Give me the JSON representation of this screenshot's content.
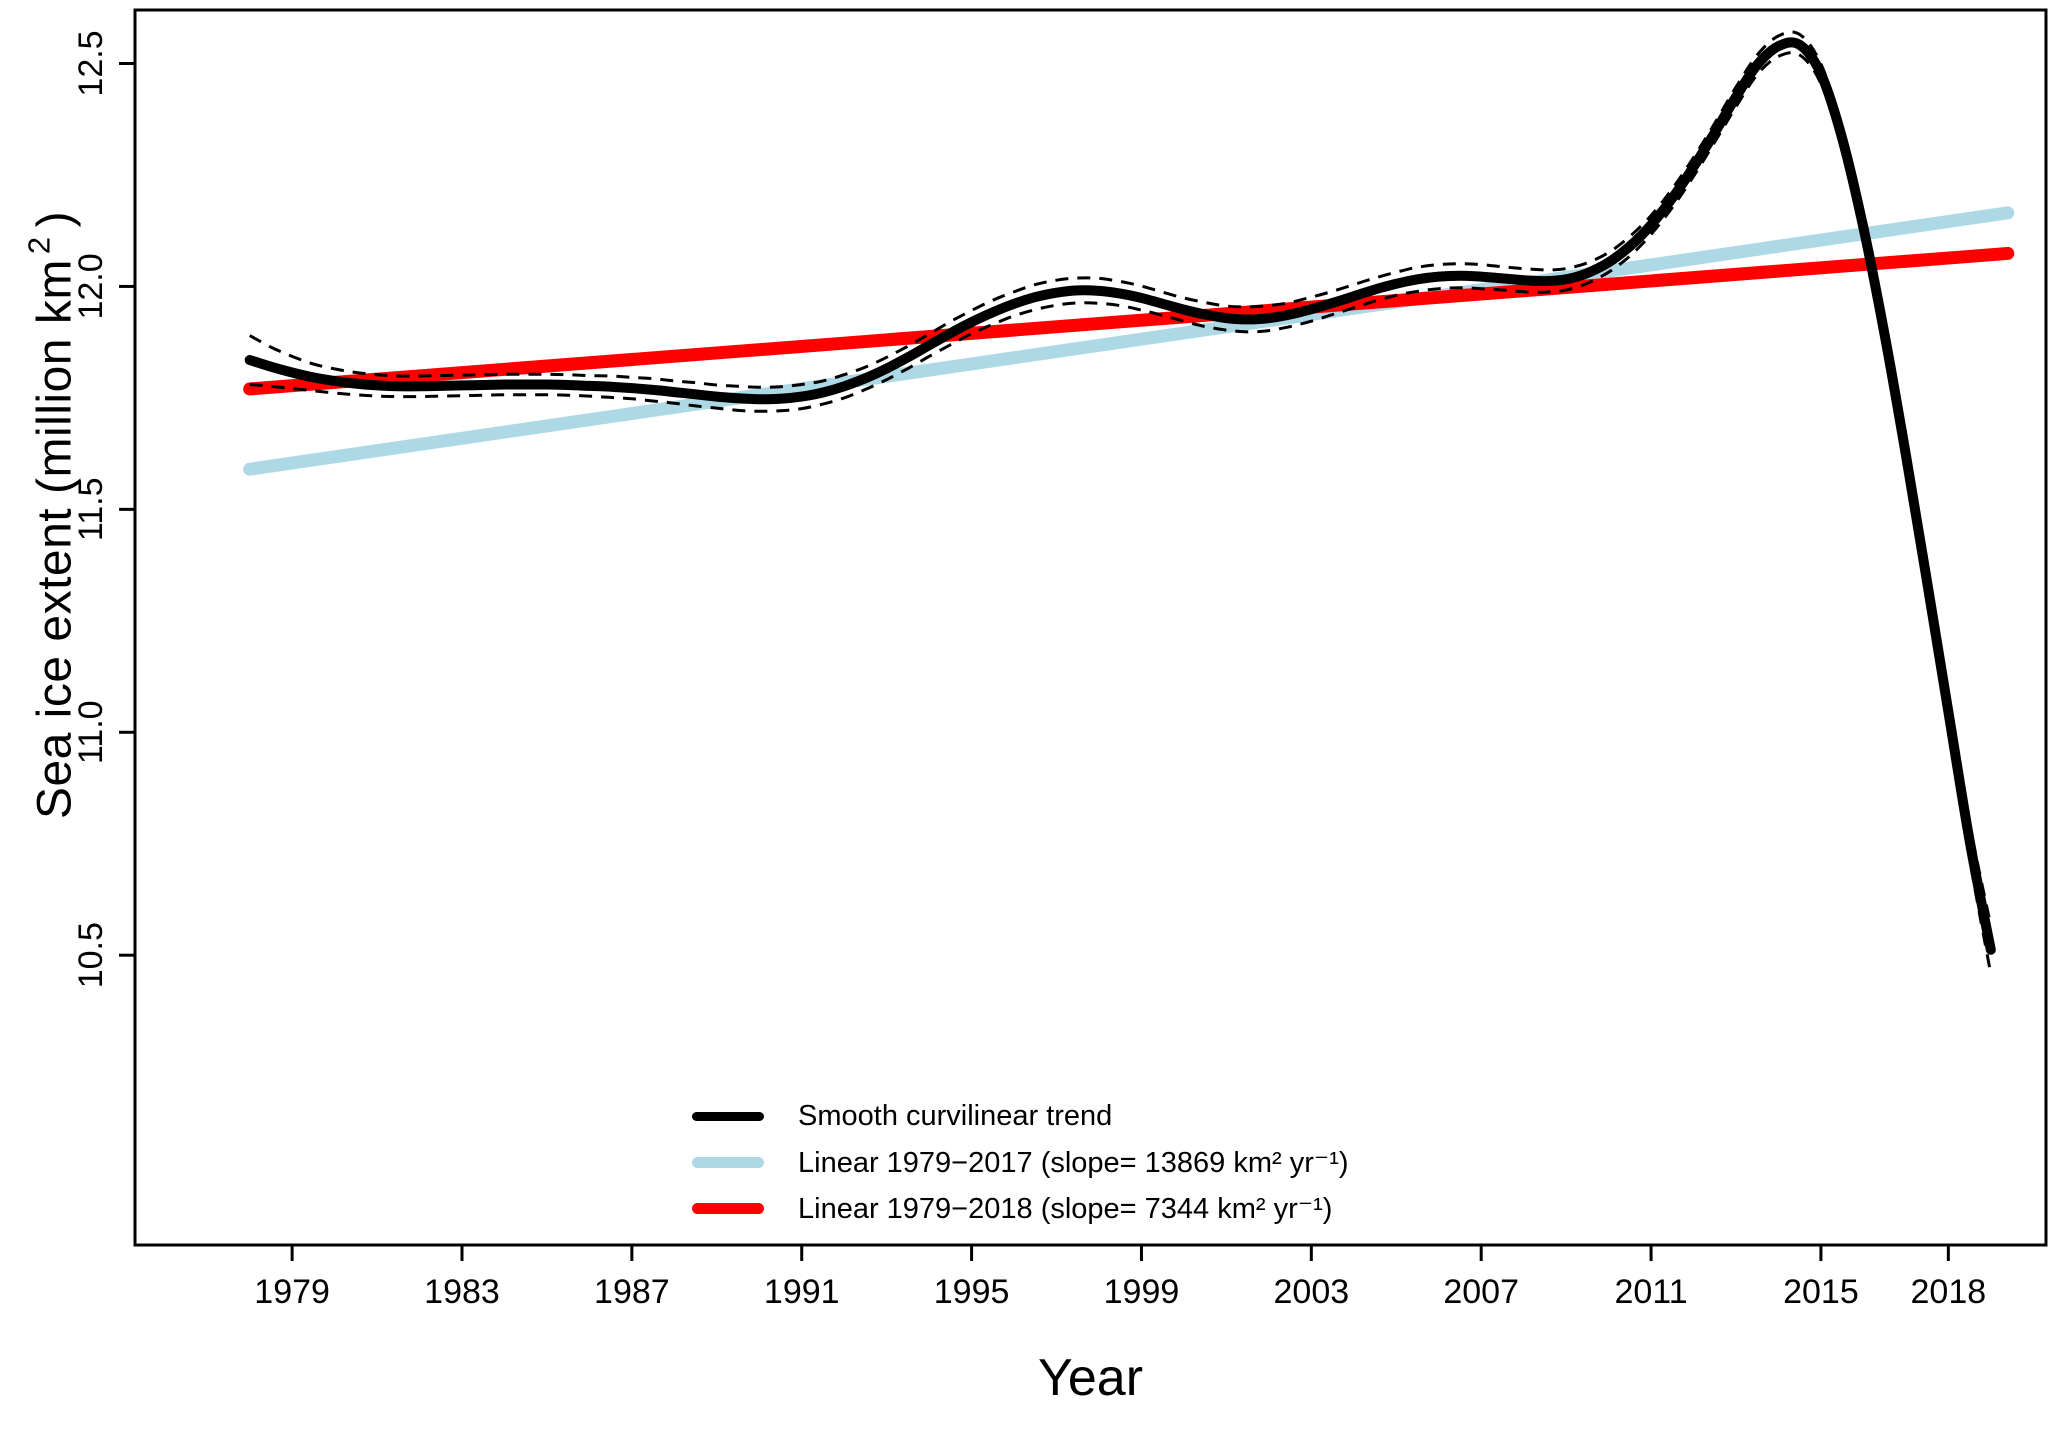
{
  "chart_data": {
    "type": "line",
    "title": "",
    "xlabel": "Year",
    "ylabel": "Sea ice extent (million km²)",
    "ylabel_parts": {
      "pre": "Sea ice extent (million km",
      "sup": "2",
      "post": ")"
    },
    "xlim": [
      1975.3,
      2020.3
    ],
    "ylim": [
      9.85,
      12.62
    ],
    "x_ticks": [
      1979,
      1983,
      1987,
      1991,
      1995,
      1999,
      2003,
      2007,
      2011,
      2015,
      2018
    ],
    "y_ticks": [
      10.5,
      11.0,
      11.5,
      12.0,
      12.5
    ],
    "y_tick_labels": [
      "10.5",
      "11.0",
      "11.5",
      "12.0",
      "12.5"
    ],
    "grid": false,
    "legend_position": "inside-bottom-center",
    "series": [
      {
        "name": "Smooth curvilinear trend",
        "kind": "smooth",
        "color": "#000000",
        "width": 10,
        "ci_style": "dashed",
        "x": [
          1978,
          1978.5,
          1979,
          1979.5,
          1980,
          1980.5,
          1981,
          1981.5,
          1982,
          1982.5,
          1983,
          1983.5,
          1984,
          1984.5,
          1985,
          1985.5,
          1986,
          1986.5,
          1987,
          1987.5,
          1988,
          1988.5,
          1989,
          1989.5,
          1990,
          1990.5,
          1991,
          1991.5,
          1992,
          1992.5,
          1993,
          1993.5,
          1994,
          1994.5,
          1995,
          1995.5,
          1996,
          1996.5,
          1997,
          1997.5,
          1998,
          1998.5,
          1999,
          1999.5,
          2000,
          2000.5,
          2001,
          2001.5,
          2002,
          2002.5,
          2003,
          2003.5,
          2004,
          2004.5,
          2005,
          2005.5,
          2006,
          2006.5,
          2007,
          2007.5,
          2008,
          2008.5,
          2009,
          2009.5,
          2010,
          2010.5,
          2011,
          2011.5,
          2012,
          2012.5,
          2013,
          2013.5,
          2014,
          2014.5,
          2015,
          2015.5,
          2016,
          2016.5,
          2017,
          2017.5,
          2018,
          2018.5,
          2019
        ],
        "y": [
          11.835,
          11.82,
          11.807,
          11.796,
          11.788,
          11.782,
          11.778,
          11.776,
          11.776,
          11.777,
          11.778,
          11.779,
          11.78,
          11.78,
          11.78,
          11.779,
          11.777,
          11.775,
          11.772,
          11.768,
          11.763,
          11.758,
          11.753,
          11.749,
          11.747,
          11.748,
          11.753,
          11.762,
          11.776,
          11.794,
          11.816,
          11.841,
          11.868,
          11.895,
          11.92,
          11.942,
          11.961,
          11.976,
          11.986,
          11.991,
          11.99,
          11.984,
          11.974,
          11.961,
          11.948,
          11.937,
          11.929,
          11.926,
          11.929,
          11.937,
          11.949,
          11.963,
          11.978,
          11.993,
          12.006,
          12.016,
          12.022,
          12.024,
          12.022,
          12.018,
          12.014,
          12.012,
          12.016,
          12.03,
          12.054,
          12.09,
          12.138,
          12.198,
          12.268,
          12.345,
          12.425,
          12.497,
          12.539,
          12.542,
          12.477,
          12.332,
          12.132,
          11.892,
          11.622,
          11.337,
          11.047,
          10.757,
          10.512
        ],
        "ci_halfwidth": [
          0.055,
          0.044,
          0.036,
          0.03,
          0.027,
          0.025,
          0.024,
          0.023,
          0.023,
          0.023,
          0.023,
          0.023,
          0.023,
          0.023,
          0.023,
          0.023,
          0.023,
          0.024,
          0.024,
          0.025,
          0.025,
          0.026,
          0.026,
          0.027,
          0.027,
          0.027,
          0.027,
          0.026,
          0.026,
          0.025,
          0.025,
          0.025,
          0.025,
          0.026,
          0.026,
          0.027,
          0.027,
          0.028,
          0.028,
          0.028,
          0.028,
          0.027,
          0.027,
          0.026,
          0.026,
          0.027,
          0.027,
          0.028,
          0.028,
          0.027,
          0.027,
          0.026,
          0.026,
          0.026,
          0.026,
          0.027,
          0.027,
          0.027,
          0.027,
          0.026,
          0.026,
          0.025,
          0.024,
          0.023,
          0.022,
          0.022,
          0.021,
          0.021,
          0.021,
          0.021,
          0.022,
          0.022,
          0.023,
          0.023,
          0.022,
          0.022,
          0.022,
          0.023,
          0.024,
          0.027,
          0.031,
          0.04,
          0.054
        ]
      },
      {
        "name": "Linear 1979−2017 (slope= 13869 km² yr⁻¹)",
        "kind": "straight",
        "color": "#ADD8E6",
        "width": 13,
        "slope_km2_per_yr": 13869,
        "x": [
          1978.0,
          2019.4
        ],
        "y": [
          11.59,
          12.165
        ]
      },
      {
        "name": "Linear 1979−2018 (slope= 7344  km² yr⁻¹)",
        "kind": "straight",
        "color": "#FF0000",
        "width": 13,
        "slope_km2_per_yr": 7344,
        "x": [
          1978.0,
          2019.4
        ],
        "y": [
          11.77,
          12.074
        ]
      }
    ]
  }
}
